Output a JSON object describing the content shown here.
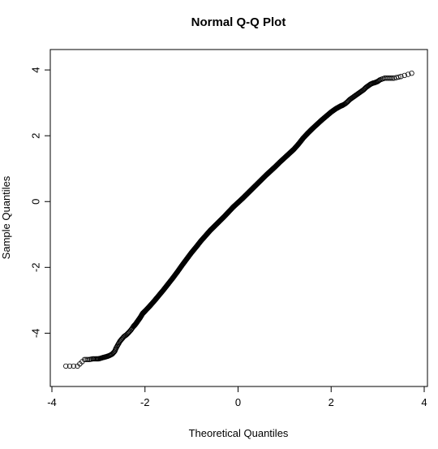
{
  "chart_data": {
    "type": "scatter",
    "title": "Normal Q-Q Plot",
    "xlabel": "Theoretical Quantiles",
    "ylabel": "Sample Quantiles",
    "xlim": [
      -4,
      4
    ],
    "ylim": [
      -5.2,
      4.25
    ],
    "x_ticks": [
      -4,
      -2,
      0,
      2,
      4
    ],
    "y_ticks": [
      -4,
      -2,
      0,
      2,
      4
    ],
    "x_tick_labels": [
      "-4",
      "-2",
      "0",
      "2",
      "4"
    ],
    "y_tick_labels": [
      "-4",
      "-2",
      "0",
      "2",
      "4"
    ],
    "grid": false,
    "marker": "open-circle",
    "points": [
      [
        -3.7,
        -5.0
      ],
      [
        -3.45,
        -5.0
      ],
      [
        -3.3,
        -4.8
      ],
      [
        -3.2,
        -4.8
      ],
      [
        -3.12,
        -4.78
      ],
      [
        -3.05,
        -4.78
      ],
      [
        -3.0,
        -4.78
      ],
      [
        -2.95,
        -4.76
      ],
      [
        -2.9,
        -4.74
      ],
      [
        -2.85,
        -4.72
      ],
      [
        -2.8,
        -4.7
      ],
      [
        -2.75,
        -4.67
      ],
      [
        -2.7,
        -4.63
      ],
      [
        -2.65,
        -4.55
      ],
      [
        -2.62,
        -4.45
      ],
      [
        -2.58,
        -4.35
      ],
      [
        -2.54,
        -4.25
      ],
      [
        -2.5,
        -4.18
      ],
      [
        -2.45,
        -4.1
      ],
      [
        -2.4,
        -4.05
      ],
      [
        -2.35,
        -3.98
      ],
      [
        -2.3,
        -3.9
      ],
      [
        -2.25,
        -3.8
      ],
      [
        -2.2,
        -3.72
      ],
      [
        -2.15,
        -3.62
      ],
      [
        -2.1,
        -3.52
      ],
      [
        -2.05,
        -3.4
      ],
      [
        -2.0,
        -3.33
      ],
      [
        -1.9,
        -3.18
      ],
      [
        -1.8,
        -3.02
      ],
      [
        -1.7,
        -2.85
      ],
      [
        -1.6,
        -2.68
      ],
      [
        -1.5,
        -2.5
      ],
      [
        -1.4,
        -2.32
      ],
      [
        -1.3,
        -2.13
      ],
      [
        -1.2,
        -1.93
      ],
      [
        -1.1,
        -1.74
      ],
      [
        -1.0,
        -1.55
      ],
      [
        -0.9,
        -1.38
      ],
      [
        -0.8,
        -1.2
      ],
      [
        -0.7,
        -1.04
      ],
      [
        -0.6,
        -0.88
      ],
      [
        -0.5,
        -0.74
      ],
      [
        -0.4,
        -0.6
      ],
      [
        -0.3,
        -0.46
      ],
      [
        -0.2,
        -0.31
      ],
      [
        -0.1,
        -0.16
      ],
      [
        0.0,
        -0.03
      ],
      [
        0.1,
        0.1
      ],
      [
        0.2,
        0.24
      ],
      [
        0.3,
        0.38
      ],
      [
        0.4,
        0.52
      ],
      [
        0.5,
        0.66
      ],
      [
        0.6,
        0.8
      ],
      [
        0.7,
        0.93
      ],
      [
        0.8,
        1.06
      ],
      [
        0.9,
        1.2
      ],
      [
        1.0,
        1.33
      ],
      [
        1.1,
        1.46
      ],
      [
        1.2,
        1.59
      ],
      [
        1.3,
        1.75
      ],
      [
        1.4,
        1.93
      ],
      [
        1.5,
        2.08
      ],
      [
        1.6,
        2.22
      ],
      [
        1.7,
        2.35
      ],
      [
        1.8,
        2.48
      ],
      [
        1.9,
        2.6
      ],
      [
        2.0,
        2.72
      ],
      [
        2.1,
        2.82
      ],
      [
        2.2,
        2.9
      ],
      [
        2.25,
        2.93
      ],
      [
        2.3,
        2.97
      ],
      [
        2.35,
        3.03
      ],
      [
        2.4,
        3.1
      ],
      [
        2.45,
        3.15
      ],
      [
        2.5,
        3.2
      ],
      [
        2.55,
        3.25
      ],
      [
        2.6,
        3.3
      ],
      [
        2.65,
        3.35
      ],
      [
        2.7,
        3.4
      ],
      [
        2.75,
        3.47
      ],
      [
        2.8,
        3.52
      ],
      [
        2.85,
        3.57
      ],
      [
        2.9,
        3.6
      ],
      [
        2.95,
        3.62
      ],
      [
        3.0,
        3.65
      ],
      [
        3.05,
        3.7
      ],
      [
        3.15,
        3.75
      ],
      [
        3.25,
        3.75
      ],
      [
        3.35,
        3.75
      ],
      [
        3.5,
        3.8
      ],
      [
        3.73,
        3.9
      ]
    ]
  }
}
